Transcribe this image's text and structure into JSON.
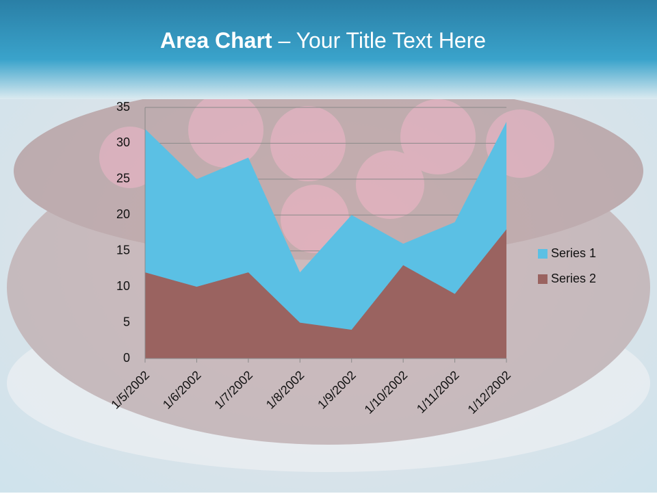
{
  "chart_data": {
    "type": "area",
    "title_emphasis": "Area Chart",
    "title": "– Your Title Text Here",
    "categories": [
      "1/5/2002",
      "1/6/2002",
      "1/7/2002",
      "1/8/2002",
      "1/9/2002",
      "1/10/2002",
      "1/11/2002",
      "1/12/2002"
    ],
    "series": [
      {
        "name": "Series 1",
        "color": "#5bc0e4",
        "values": [
          32,
          25,
          28,
          12,
          20,
          16,
          19,
          33
        ]
      },
      {
        "name": "Series 2",
        "color": "#9a6360",
        "values": [
          12,
          10,
          12,
          5,
          4,
          13,
          9,
          18
        ]
      }
    ],
    "ylim": [
      0,
      35
    ],
    "yticks": [
      0,
      5,
      10,
      15,
      20,
      25,
      30,
      35
    ],
    "grid": true,
    "legend": "right"
  }
}
